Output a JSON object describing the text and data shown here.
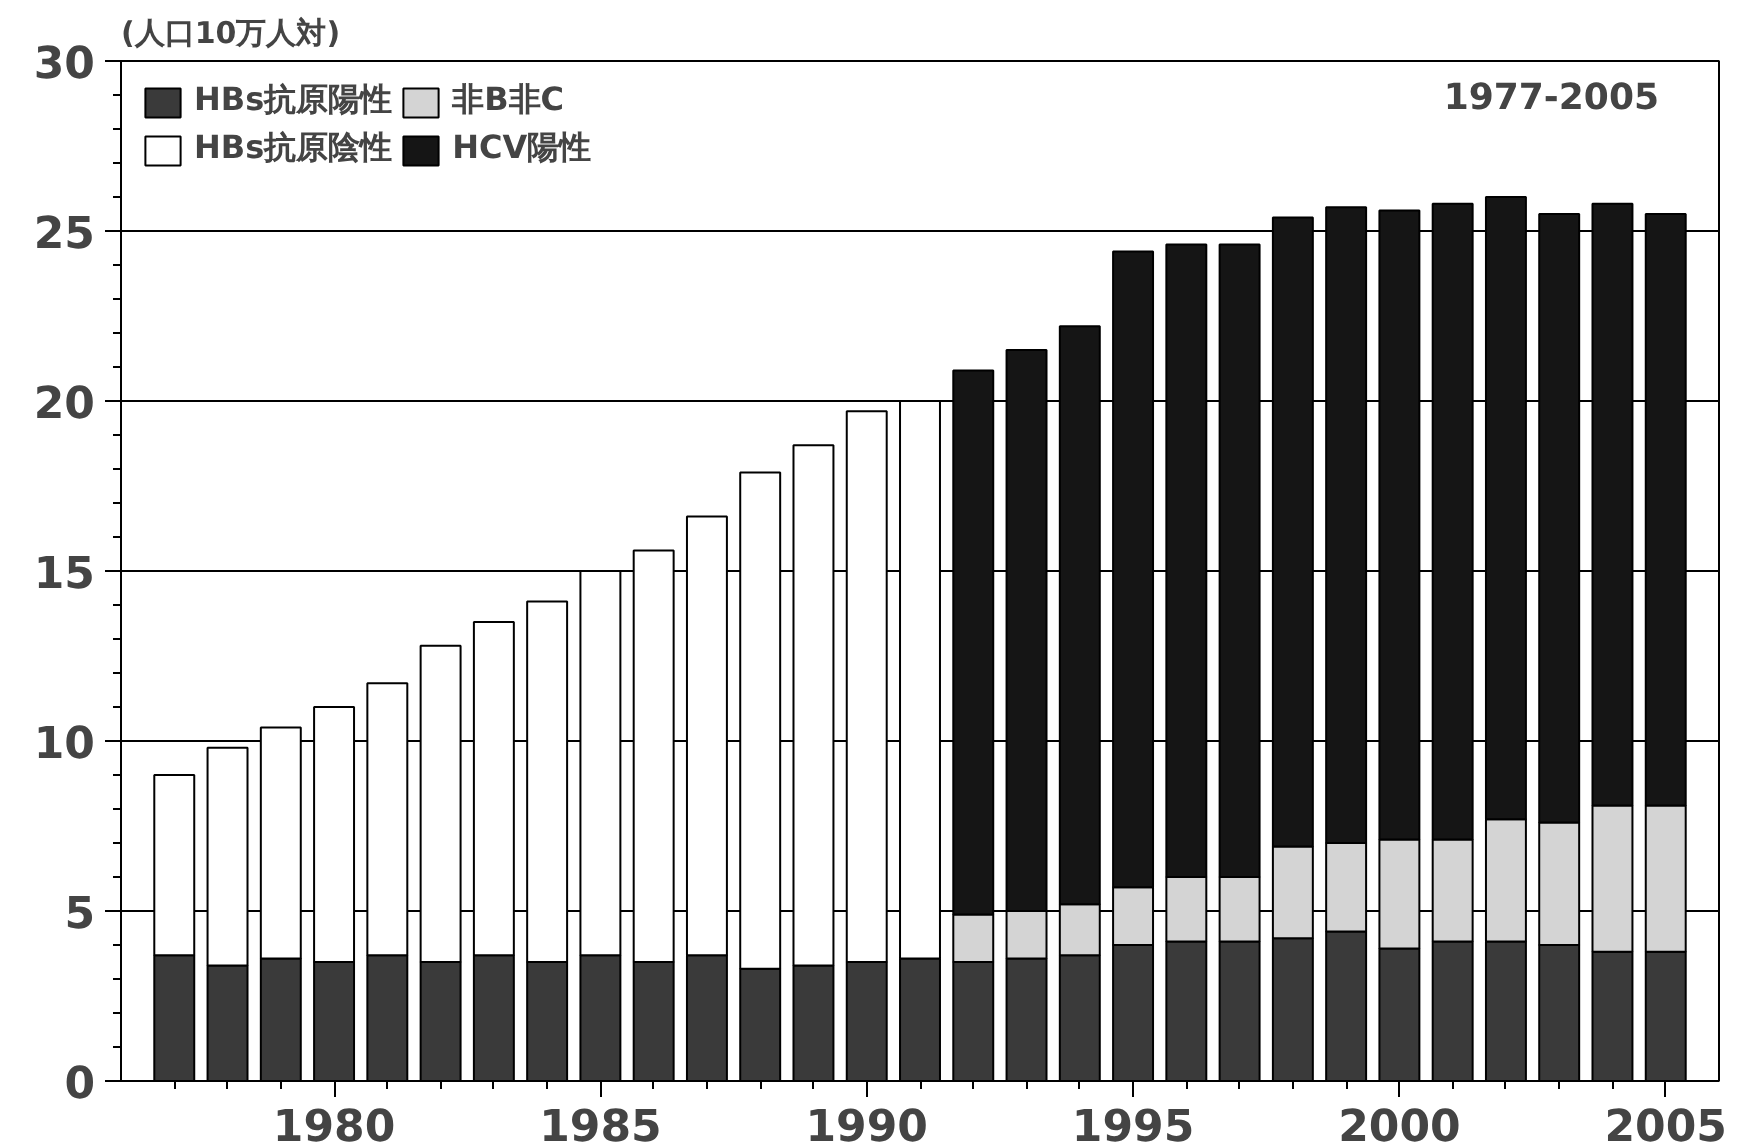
{
  "chart_data": {
    "type": "bar",
    "stacked": true,
    "ylabel": "(人口10万人対)",
    "annotations": [
      "1977-2005"
    ],
    "x": [
      1977,
      1978,
      1979,
      1980,
      1981,
      1982,
      1983,
      1984,
      1985,
      1986,
      1987,
      1988,
      1989,
      1990,
      1991,
      1992,
      1993,
      1994,
      1995,
      1996,
      1997,
      1998,
      1999,
      2000,
      2001,
      2002,
      2003,
      2004,
      2005
    ],
    "series": [
      {
        "name": "HBs抗原陽性",
        "color": "#3a3a3a",
        "values": [
          3.7,
          3.4,
          3.6,
          3.5,
          3.7,
          3.5,
          3.7,
          3.5,
          3.7,
          3.5,
          3.7,
          3.3,
          3.4,
          3.5,
          3.6,
          3.5,
          3.6,
          3.7,
          4.0,
          4.1,
          4.1,
          4.2,
          4.4,
          3.9,
          4.1,
          4.1,
          4.0,
          3.8,
          3.8
        ]
      },
      {
        "name": "HBs抗原陰性",
        "color": "#ffffff",
        "values": [
          5.3,
          6.4,
          6.8,
          7.5,
          8.0,
          9.3,
          9.8,
          10.6,
          11.3,
          12.1,
          12.9,
          14.6,
          15.3,
          16.2,
          16.4,
          null,
          null,
          null,
          null,
          null,
          null,
          null,
          null,
          null,
          null,
          null,
          null,
          null,
          null
        ]
      },
      {
        "name": "非B非C",
        "color": "#d4d4d4",
        "values": [
          null,
          null,
          null,
          null,
          null,
          null,
          null,
          null,
          null,
          null,
          null,
          null,
          null,
          null,
          null,
          1.4,
          1.4,
          1.5,
          1.7,
          1.9,
          1.9,
          2.7,
          2.6,
          3.2,
          3.0,
          3.6,
          3.6,
          4.3,
          4.3
        ]
      },
      {
        "name": "HCV陽性",
        "color": "#151515",
        "values": [
          null,
          null,
          null,
          null,
          null,
          null,
          null,
          null,
          null,
          null,
          null,
          null,
          null,
          null,
          null,
          16.0,
          16.5,
          17.0,
          18.7,
          18.6,
          18.6,
          18.5,
          18.7,
          18.5,
          18.7,
          18.3,
          17.9,
          17.7,
          17.4
        ]
      }
    ],
    "xlim": [
      1976,
      2006
    ],
    "xticks": [
      1980,
      1985,
      1990,
      1995,
      2000,
      2005
    ],
    "ylim": [
      0,
      30
    ],
    "yticks": [
      0,
      5,
      10,
      15,
      20,
      25,
      30
    ],
    "grid": "y",
    "legend": "top left"
  }
}
